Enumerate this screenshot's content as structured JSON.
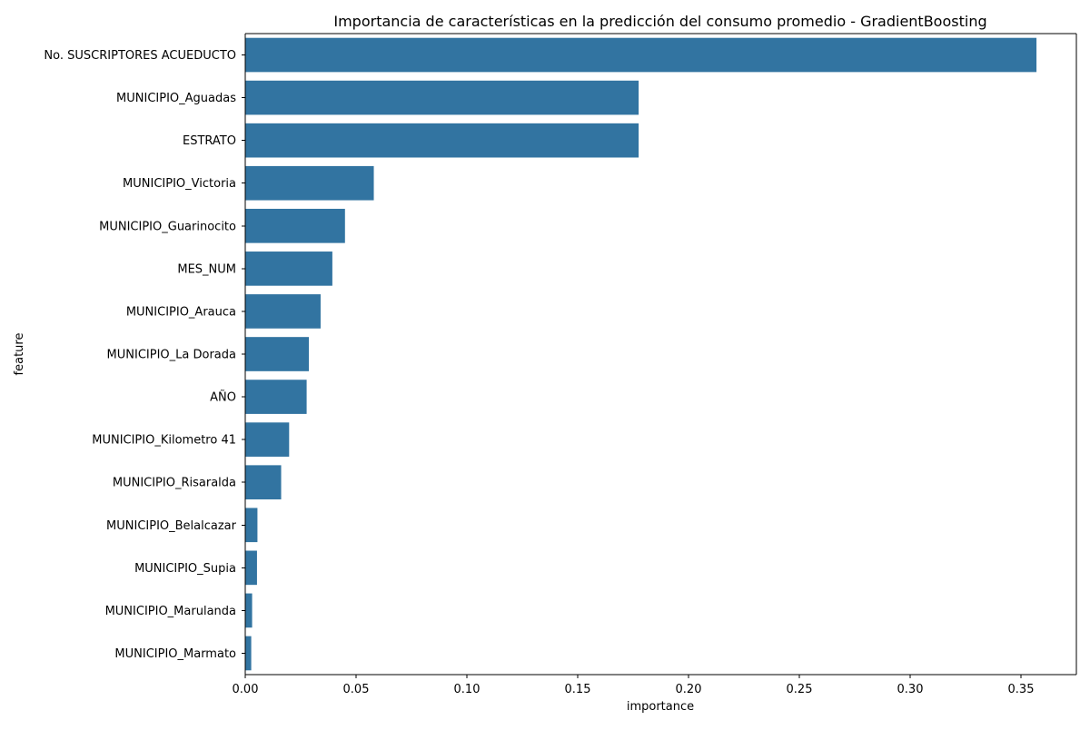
{
  "chart_data": {
    "type": "bar",
    "orientation": "horizontal",
    "title": "Importancia de características en la predicción del consumo promedio - GradientBoosting",
    "xlabel": "importance",
    "ylabel": "feature",
    "categories": [
      "No. SUSCRIPTORES ACUEDUCTO",
      "MUNICIPIO_Aguadas",
      "ESTRATO",
      "MUNICIPIO_Victoria",
      "MUNICIPIO_Guarinocito",
      "MES_NUM",
      "MUNICIPIO_Arauca",
      "MUNICIPIO_La Dorada",
      "AÑO",
      "MUNICIPIO_Kilometro 41",
      "MUNICIPIO_Risaralda",
      "MUNICIPIO_Belalcazar",
      "MUNICIPIO_Supia",
      "MUNICIPIO_Marulanda",
      "MUNICIPIO_Marmato"
    ],
    "values": [
      0.357,
      0.1775,
      0.1775,
      0.058,
      0.045,
      0.0393,
      0.034,
      0.0287,
      0.0277,
      0.0198,
      0.0162,
      0.0055,
      0.0053,
      0.0031,
      0.0027
    ],
    "xlim": [
      0,
      0.375
    ],
    "xticks": [
      0.0,
      0.05,
      0.1,
      0.15,
      0.2,
      0.25,
      0.3,
      0.35
    ],
    "xtick_labels": [
      "0.00",
      "0.05",
      "0.10",
      "0.15",
      "0.20",
      "0.25",
      "0.30",
      "0.35"
    ],
    "grid": false,
    "bar_color": "#3274a1"
  }
}
